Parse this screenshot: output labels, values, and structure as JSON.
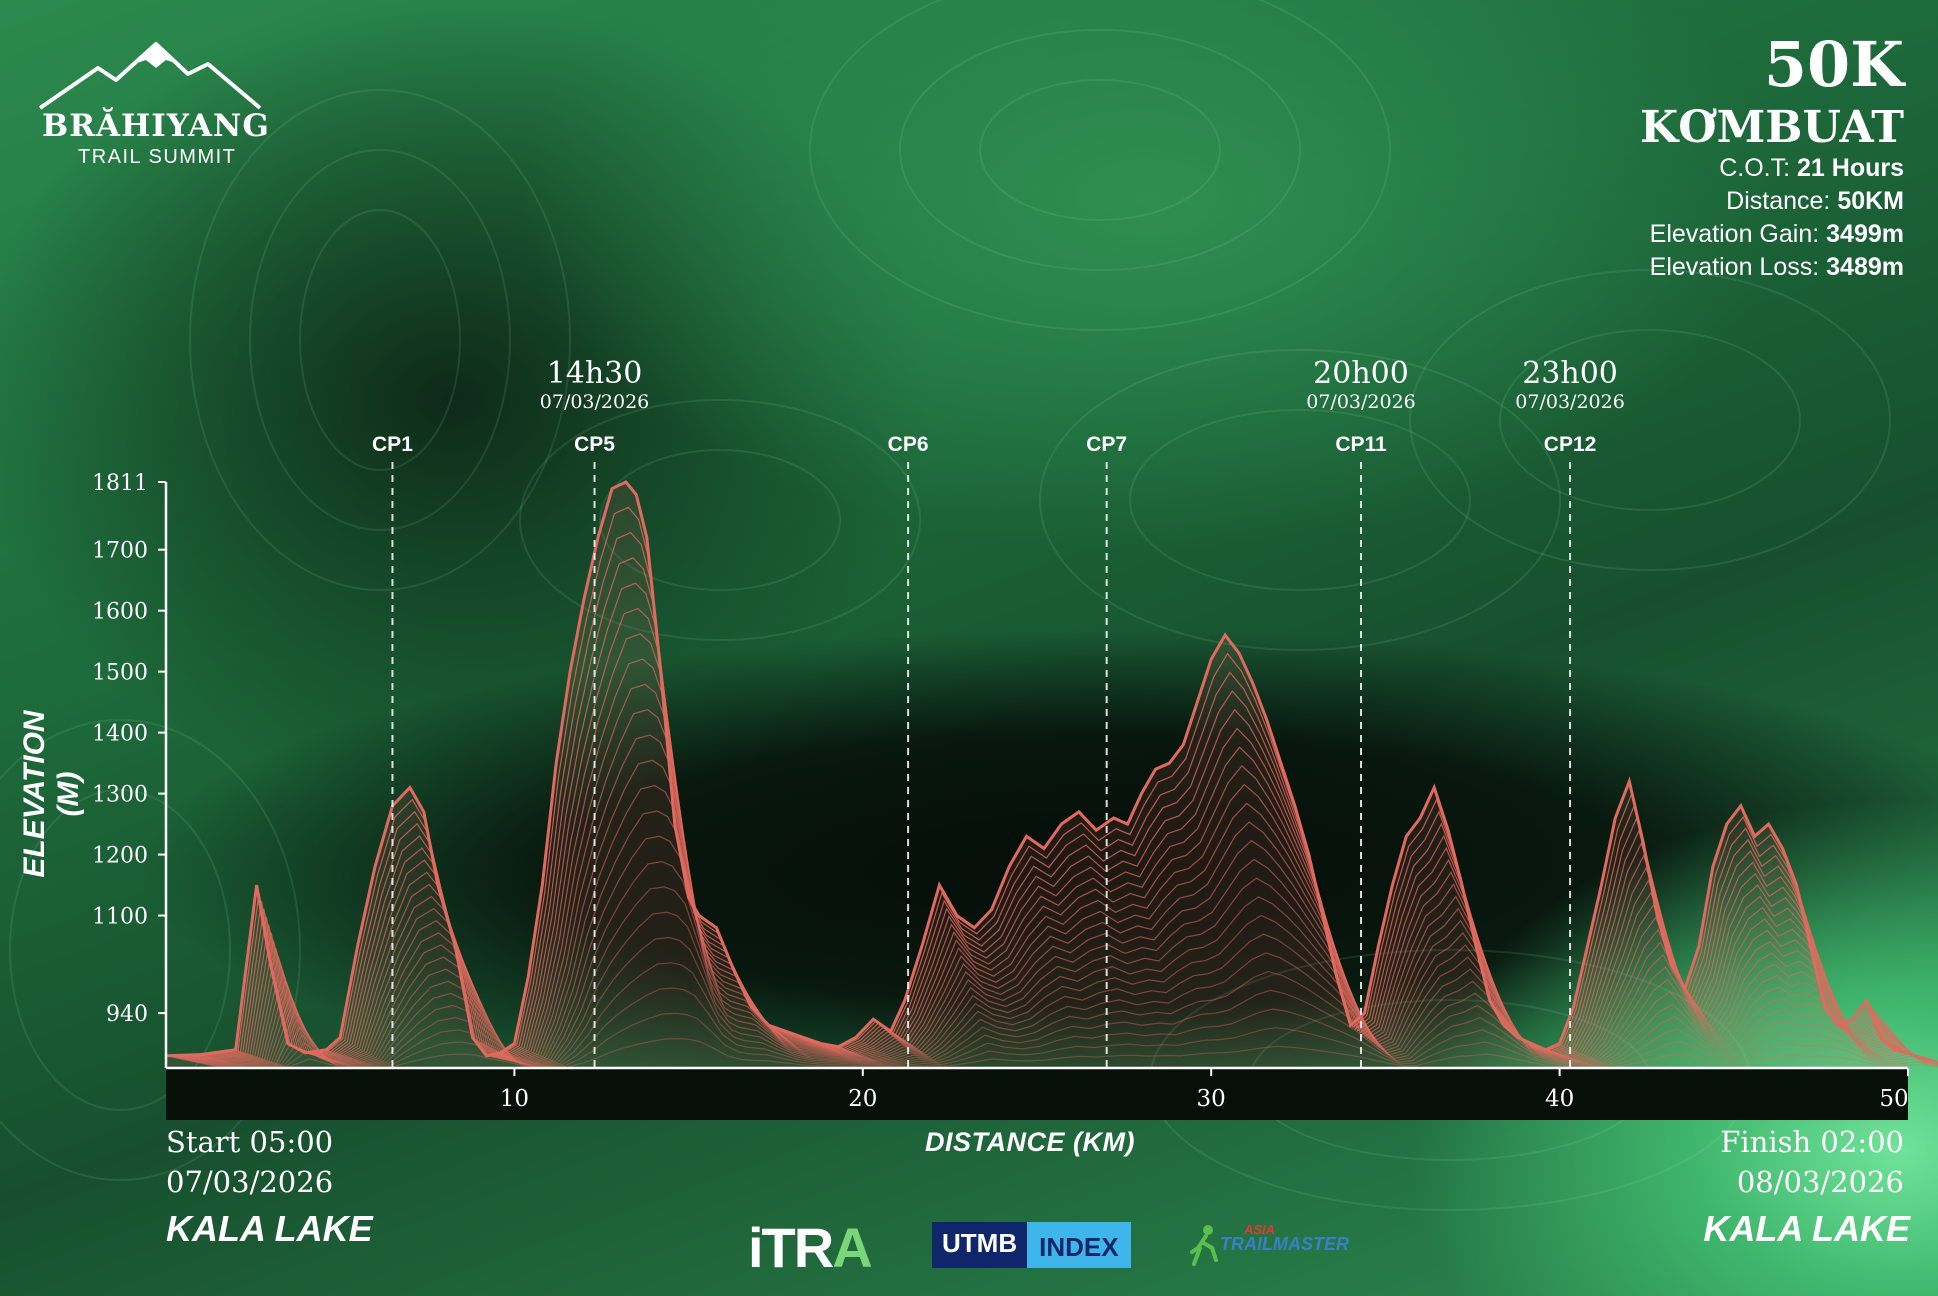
{
  "logo": {
    "brand": "BRĂHIYANG",
    "sub": "TRAIL SUMMIT",
    "icon": "mountain-runner-icon"
  },
  "race": {
    "distance": "50K",
    "name": "KƠMBUAT",
    "cot_label": "C.O.T:",
    "cot_value": "21 Hours",
    "distance_label": "Distance:",
    "distance_value": "50KM",
    "gain_label": "Elevation Gain:",
    "gain_value": "3499m",
    "loss_label": "Elevation Loss:",
    "loss_value": "3489m"
  },
  "start": {
    "time": "Start 05:00",
    "date": "07/03/2026",
    "place": "KALA LAKE"
  },
  "finish": {
    "time": "Finish 02:00",
    "date": "08/03/2026",
    "place": "KALA LAKE"
  },
  "sponsors": {
    "itra_a": "iTR",
    "itra_b": "A",
    "utmb_a": "UTMB",
    "utmb_b": "INDEX",
    "atm_a": "ASIA",
    "atm_b": "TRAILMASTER"
  },
  "colors": {
    "profile": "#e06a5f",
    "profile_fill_light": "#f08a7c",
    "accent_green": "#7bd67a"
  },
  "chart_data": {
    "type": "area",
    "xlabel": "DISTANCE (KM)",
    "ylabel": "ELEVATION (M)",
    "xlim": [
      0,
      50
    ],
    "ylim": [
      850,
      1811
    ],
    "x_ticks": [
      10,
      20,
      30,
      40,
      50
    ],
    "y_ticks": [
      940,
      1100,
      1200,
      1300,
      1400,
      1500,
      1600,
      1700,
      1811
    ],
    "x": [
      0,
      1,
      2,
      2.6,
      3,
      3.5,
      4,
      4.6,
      5,
      5.5,
      6,
      6.5,
      7,
      7.4,
      7.8,
      8.3,
      8.8,
      9.2,
      9.6,
      10,
      10.4,
      10.8,
      11.2,
      11.6,
      12,
      12.4,
      12.8,
      13.2,
      13.5,
      13.8,
      14.2,
      14.6,
      15,
      15.3,
      15.8,
      16.3,
      16.8,
      17.3,
      17.8,
      18.3,
      18.8,
      19.3,
      19.8,
      20.3,
      20.8,
      21.2,
      21.7,
      22.2,
      22.7,
      23.2,
      23.7,
      24.2,
      24.7,
      25.2,
      25.7,
      26.2,
      26.7,
      27.2,
      27.6,
      28,
      28.4,
      28.8,
      29.2,
      29.6,
      30,
      30.4,
      30.8,
      31.2,
      31.6,
      32,
      32.4,
      32.8,
      33.2,
      33.6,
      34,
      34.4,
      34.8,
      35.2,
      35.6,
      36,
      36.4,
      36.8,
      37.2,
      37.6,
      38,
      38.4,
      38.8,
      39.2,
      39.6,
      40,
      40.4,
      40.8,
      41.2,
      41.6,
      42,
      42.4,
      42.8,
      43.2,
      43.6,
      44,
      44.4,
      44.8,
      45.2,
      45.6,
      46,
      46.4,
      46.8,
      47.2,
      47.6,
      48,
      48.4,
      48.8,
      49.2,
      49.6,
      50
    ],
    "series": [
      {
        "values": [
          870,
          872,
          880,
          1150,
          1020,
          890,
          875,
          880,
          900,
          1050,
          1180,
          1280,
          1310,
          1270,
          1150,
          1050,
          900,
          870,
          875,
          890,
          1000,
          1150,
          1350,
          1500,
          1620,
          1720,
          1800,
          1811,
          1790,
          1720,
          1500,
          1250,
          1130,
          1100,
          1080,
          1010,
          950,
          920,
          910,
          900,
          890,
          885,
          900,
          930,
          910,
          960,
          1050,
          1150,
          1100,
          1080,
          1110,
          1180,
          1230,
          1210,
          1250,
          1270,
          1240,
          1260,
          1250,
          1300,
          1340,
          1350,
          1380,
          1450,
          1520,
          1560,
          1530,
          1480,
          1420,
          1350,
          1280,
          1200,
          1100,
          1000,
          920,
          940,
          1050,
          1150,
          1230,
          1260,
          1310,
          1240,
          1150,
          1050,
          960,
          920,
          900,
          890,
          880,
          890,
          950,
          1050,
          1150,
          1260,
          1320,
          1220,
          1100,
          1020,
          980,
          1050,
          1180,
          1250,
          1280,
          1230,
          1250,
          1210,
          1150,
          1050,
          950,
          920,
          930,
          960,
          900,
          880,
          875
        ]
      }
    ],
    "checkpoints": [
      {
        "name": "CP1",
        "km": 6.5,
        "time": "",
        "date": ""
      },
      {
        "name": "CP5",
        "km": 12.3,
        "time": "14h30",
        "date": "07/03/2026"
      },
      {
        "name": "CP6",
        "km": 21.3,
        "time": "",
        "date": ""
      },
      {
        "name": "CP7",
        "km": 27.0,
        "time": "",
        "date": ""
      },
      {
        "name": "CP11",
        "km": 34.3,
        "time": "20h00",
        "date": "07/03/2026"
      },
      {
        "name": "CP12",
        "km": 40.3,
        "time": "23h00",
        "date": "07/03/2026"
      }
    ]
  }
}
